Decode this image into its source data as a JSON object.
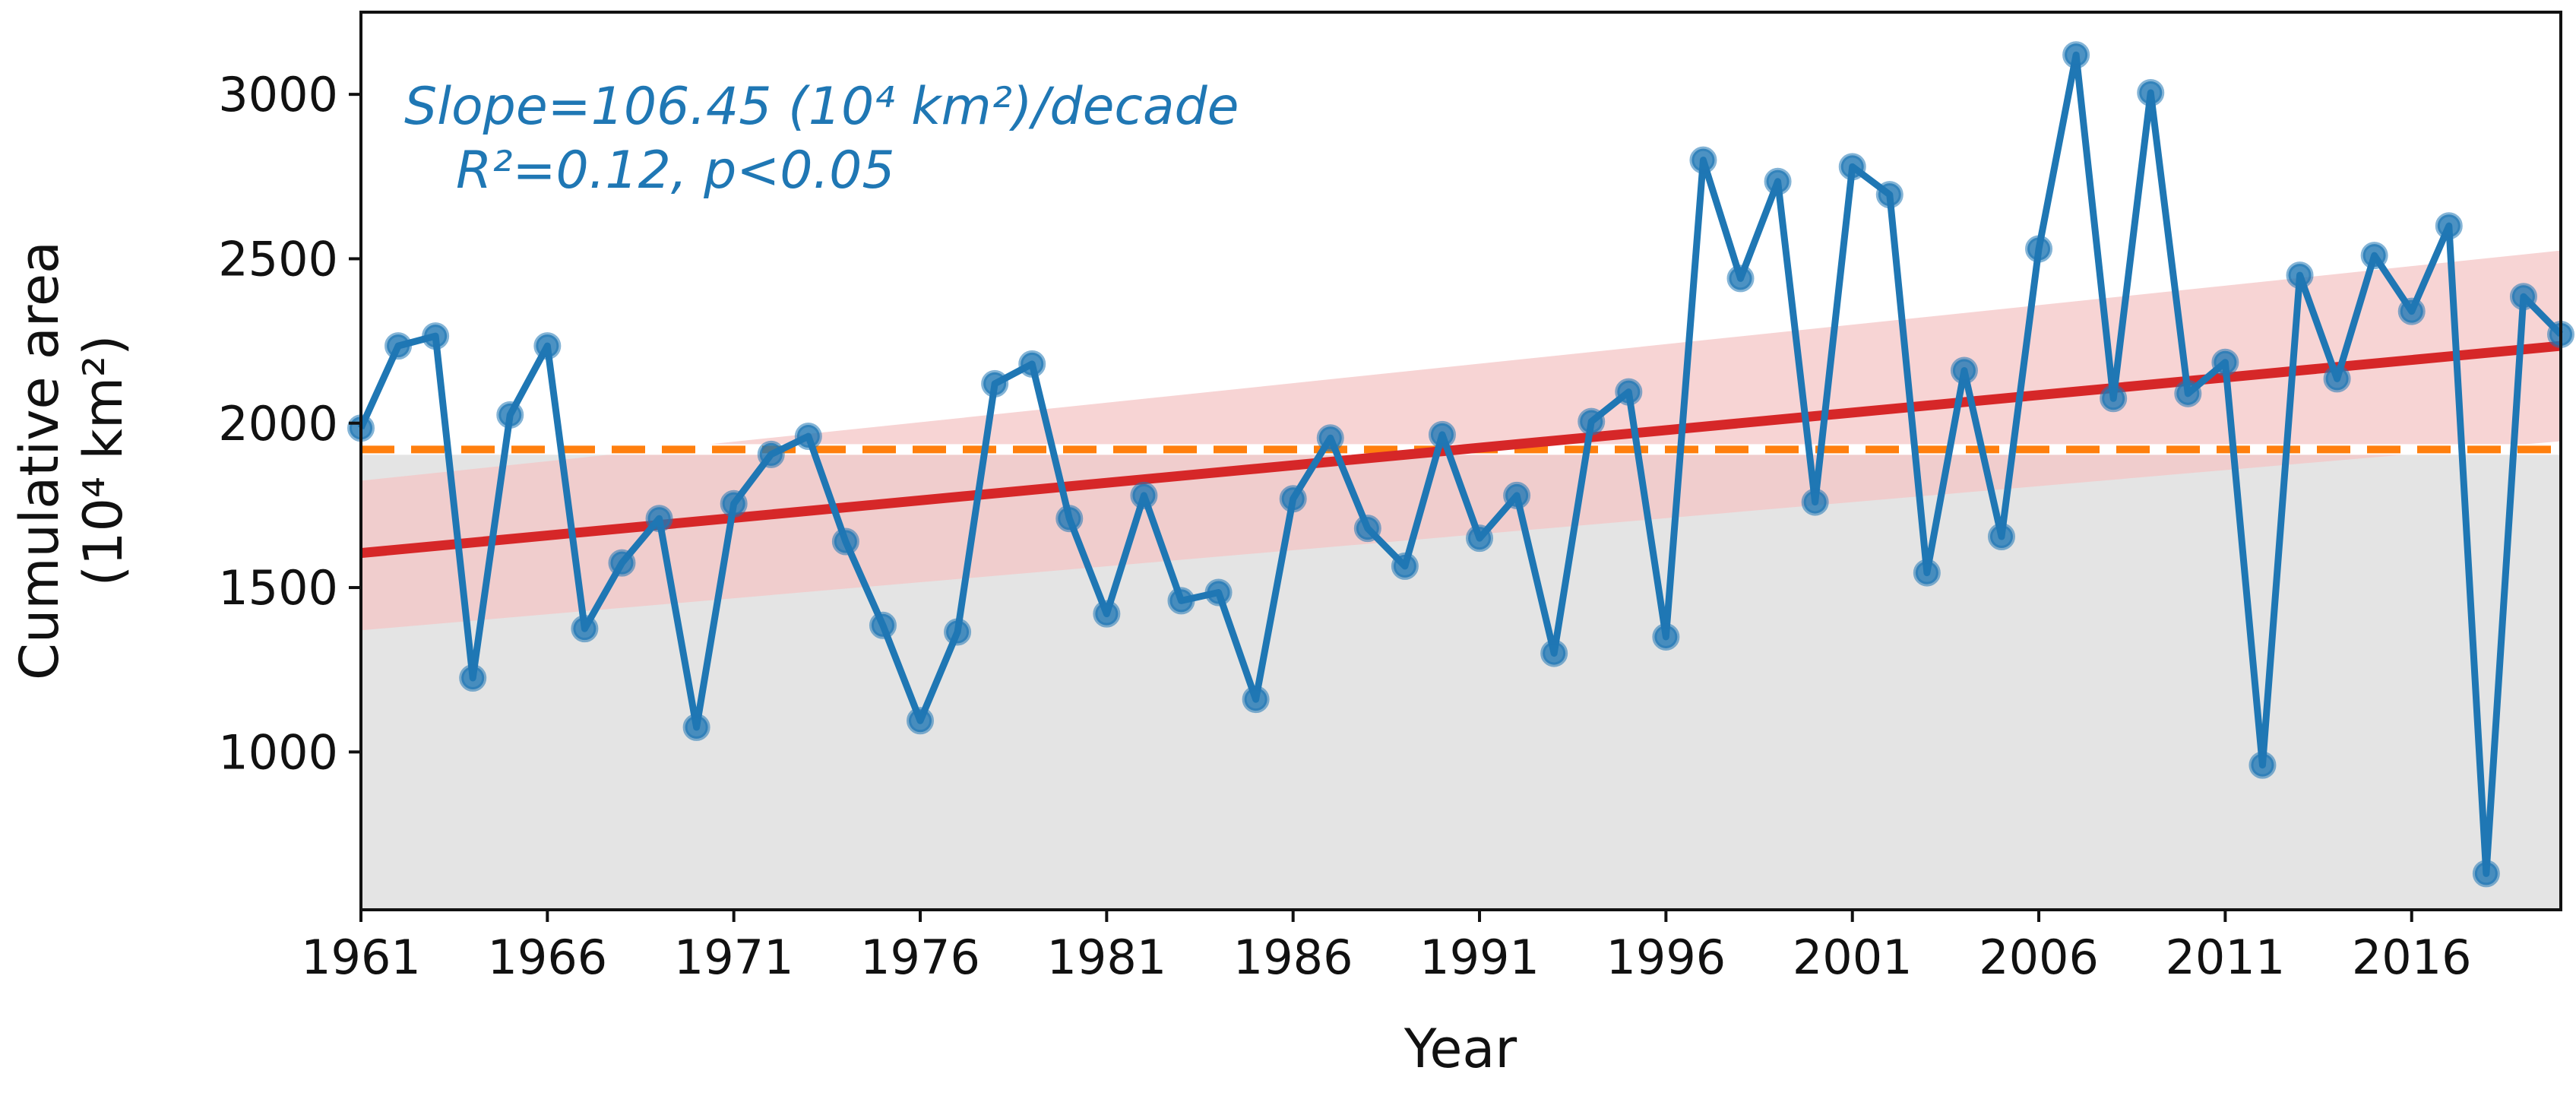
{
  "chart_data": {
    "type": "line",
    "xlabel": "Year",
    "ylabel_line1": "Cumulative area",
    "ylabel_line2": "(10⁴ km²)",
    "xlim": [
      1961,
      2020
    ],
    "ylim": [
      520,
      3250
    ],
    "xticks": [
      1961,
      1966,
      1971,
      1976,
      1981,
      1986,
      1991,
      1996,
      2001,
      2006,
      2011,
      2016
    ],
    "yticks": [
      1000,
      1500,
      2000,
      2500,
      3000
    ],
    "grid": false,
    "annotation": {
      "line1": "Slope=106.45 (10⁴ km²)/decade",
      "line2": "R²=0.12, p<0.05",
      "color": "#1f77b4"
    },
    "series": [
      {
        "color": "#1f77b4",
        "x": [
          1961,
          1962,
          1963,
          1964,
          1965,
          1966,
          1967,
          1968,
          1969,
          1970,
          1971,
          1972,
          1973,
          1974,
          1975,
          1976,
          1977,
          1978,
          1979,
          1980,
          1981,
          1982,
          1983,
          1984,
          1985,
          1986,
          1987,
          1988,
          1989,
          1990,
          1991,
          1992,
          1993,
          1994,
          1995,
          1996,
          1997,
          1998,
          1999,
          2000,
          2001,
          2002,
          2003,
          2004,
          2005,
          2006,
          2007,
          2008,
          2009,
          2010,
          2011,
          2012,
          2013,
          2014,
          2015,
          2016,
          2017,
          2018,
          2019,
          2020
        ],
        "y": [
          1985,
          2235,
          2265,
          1225,
          2025,
          2235,
          1375,
          1575,
          1710,
          1075,
          1755,
          1905,
          1960,
          1640,
          1385,
          1095,
          1365,
          2120,
          2180,
          1710,
          1420,
          1780,
          1460,
          1485,
          1160,
          1770,
          1955,
          1680,
          1565,
          1965,
          1650,
          1780,
          1300,
          2005,
          2095,
          1350,
          2800,
          2440,
          2735,
          1760,
          2780,
          2695,
          1545,
          2160,
          1655,
          2530,
          3120,
          2075,
          3005,
          2090,
          2185,
          960,
          2450,
          2135,
          2510,
          2340,
          2600,
          630,
          2385,
          2270
        ]
      }
    ],
    "trend": {
      "color": "#d62728",
      "start": [
        1961,
        1605
      ],
      "end": [
        2020,
        2235
      ],
      "ci_start": [
        1370,
        1825
      ],
      "ci_end": [
        1945,
        2525
      ],
      "ci_color": "#f4c6c6"
    },
    "mean_line": {
      "y": 1920,
      "color": "#ff7f0e",
      "style": "dashed"
    },
    "fill_below_mean_color": "#e4e4e4"
  }
}
